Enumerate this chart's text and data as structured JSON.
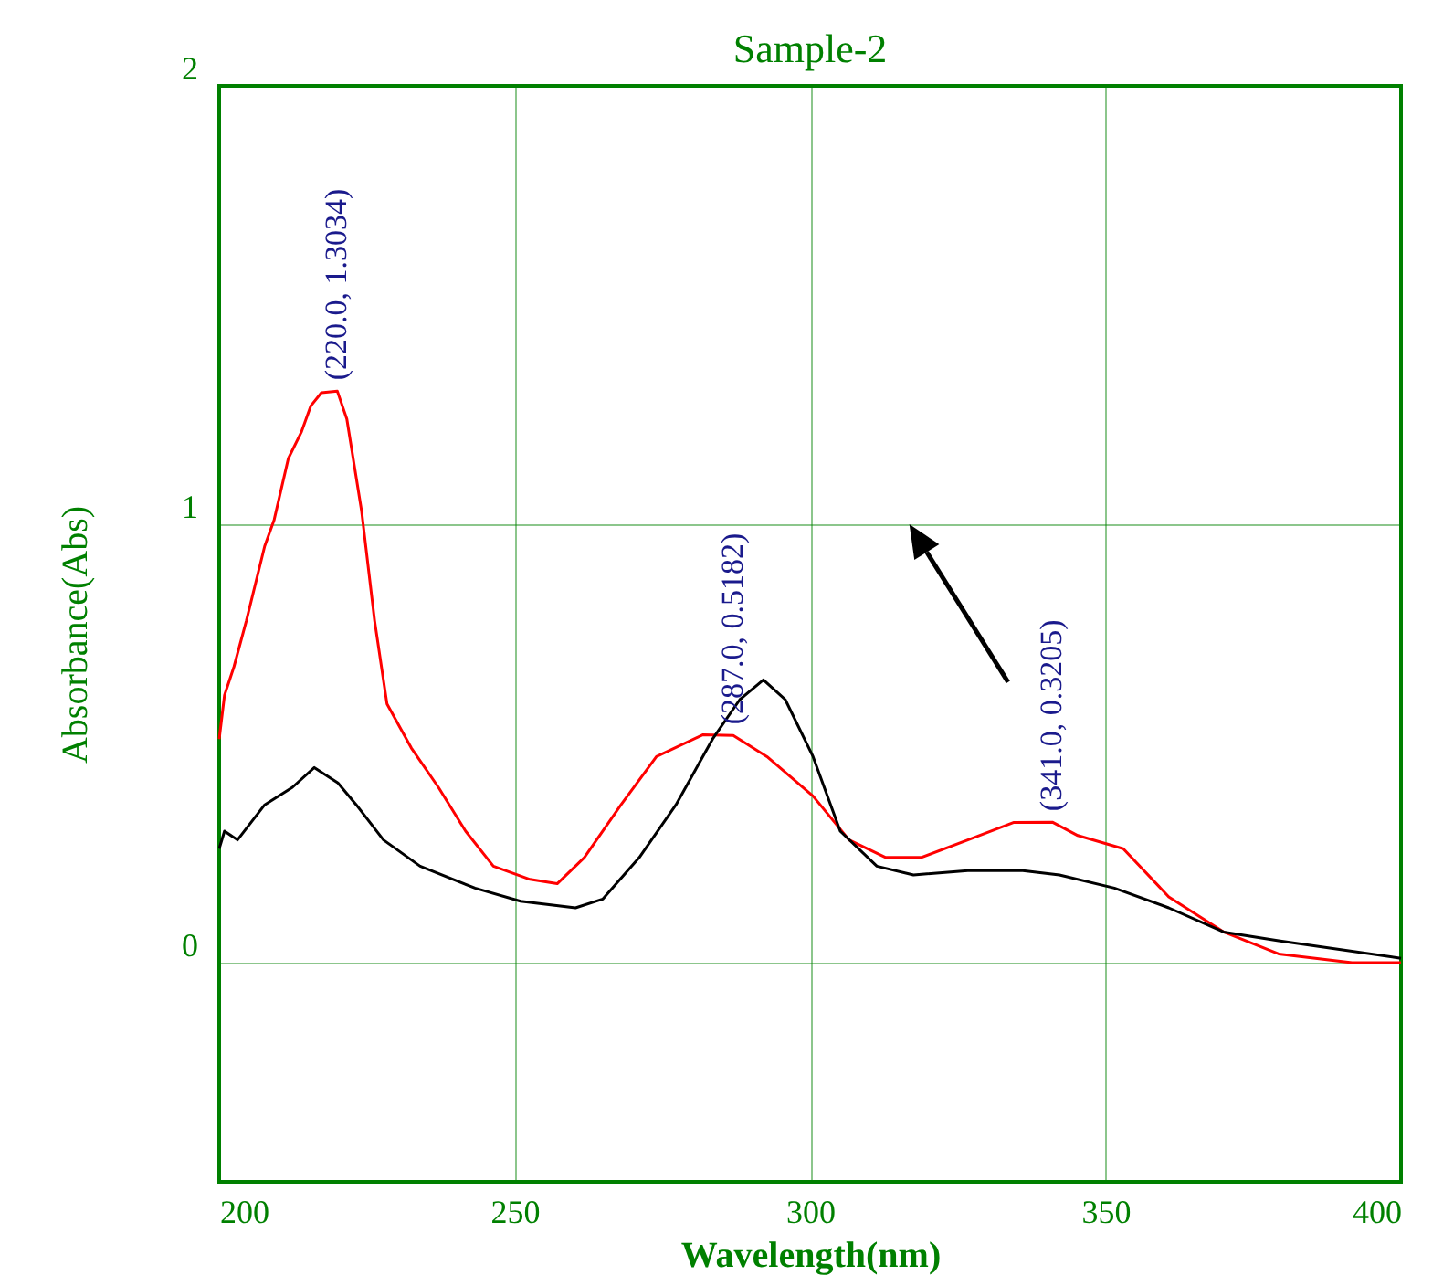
{
  "chart_data": {
    "type": "line",
    "title": "Sample-2",
    "xlabel": "Wavelength(nm)",
    "ylabel": "Absorbance(Abs)",
    "xlim": [
      200,
      400
    ],
    "xticks": [
      200,
      250,
      300,
      350,
      400
    ],
    "ylim": [
      -0.5,
      2
    ],
    "yticks": [
      0,
      1,
      2
    ],
    "grid": true,
    "legend": false,
    "marker": "none",
    "line_style": "solid",
    "series": [
      {
        "color": "#ff0000",
        "x": [
          200,
          200.9,
          202.5,
          204.6,
          207.7,
          209.3,
          211.7,
          213.9,
          215.5,
          217.3,
          220,
          221.6,
          224.1,
          226.3,
          228.4,
          232.5,
          237.1,
          241.7,
          246.4,
          252.6,
          257.2,
          261.8,
          268,
          274,
          281.9,
          287,
          292.7,
          300.5,
          306.6,
          312.8,
          318.8,
          326.7,
          334.5,
          341,
          345.3,
          353,
          360.7,
          370,
          379.3,
          391.7,
          400
        ],
        "values": [
          0.51,
          0.61,
          0.675,
          0.78,
          0.95,
          1.01,
          1.15,
          1.21,
          1.27,
          1.3,
          1.3034,
          1.24,
          1.03,
          0.78,
          0.59,
          0.49,
          0.4,
          0.3,
          0.22,
          0.19,
          0.18,
          0.24,
          0.36,
          0.47,
          0.52,
          0.5182,
          0.47,
          0.38,
          0.28,
          0.24,
          0.24,
          0.28,
          0.32,
          0.3205,
          0.29,
          0.26,
          0.15,
          0.07,
          0.02,
          0.0,
          0.0
        ]
      },
      {
        "color": "#000000",
        "x": [
          200,
          200.9,
          203.1,
          207.7,
          212.4,
          216.1,
          220.1,
          223.2,
          227.8,
          234,
          243.3,
          251,
          260.3,
          264.9,
          271.1,
          277.3,
          283.5,
          288.1,
          292.1,
          295.8,
          300.5,
          305.1,
          311.3,
          317.5,
          326.7,
          336,
          342.2,
          351.5,
          360.7,
          370,
          379.3,
          400
        ],
        "values": [
          0.26,
          0.3,
          0.28,
          0.36,
          0.4,
          0.445,
          0.41,
          0.36,
          0.28,
          0.22,
          0.17,
          0.14,
          0.125,
          0.145,
          0.24,
          0.36,
          0.51,
          0.6,
          0.645,
          0.6,
          0.47,
          0.3,
          0.22,
          0.2,
          0.21,
          0.21,
          0.2,
          0.17,
          0.125,
          0.07,
          0.05,
          0.01
        ]
      }
    ],
    "annotations": [
      {
        "text": "(220.0, 1.3034)",
        "x": 220.0,
        "y": 1.3034
      },
      {
        "text": "(287.0, 0.5182)",
        "x": 287.0,
        "y": 0.5182
      },
      {
        "text": "(341.0, 0.3205)",
        "x": 341.0,
        "y": 0.3205
      }
    ]
  }
}
